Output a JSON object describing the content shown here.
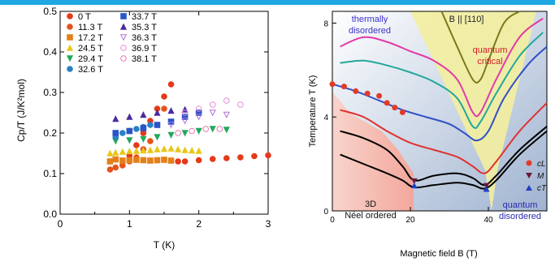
{
  "colors": {
    "top_bar": "#1ea7e3",
    "left_series": [
      "#e53919",
      "#e5531c",
      "#e4801a",
      "#e8c716",
      "#22a85a",
      "#2a80c6",
      "#2a55c8",
      "#4a2aa0",
      "#b070d8",
      "#e88ad6",
      "#e873b8"
    ],
    "phase_neel": "#f6b9b0",
    "phase_cone": "#f4f0a0",
    "phase_blue": "#b3c3da",
    "thermal_text": "#3b32cc",
    "quantum_critical_text": "#d21d24",
    "quantum_disordered_text": "#2a2ab0",
    "marker_cl": "#e23a28",
    "marker_m": "#6a1a38",
    "marker_ct": "#1e40c8"
  },
  "chart_data": [
    {
      "type": "scatter",
      "title": "",
      "xlabel": "T (K)",
      "ylabel": "Cp/T (J/K²mol)",
      "xlim": [
        0,
        3
      ],
      "ylim": [
        0,
        0.5
      ],
      "xticks": [
        "0",
        "1",
        "2",
        "3"
      ],
      "yticks": [
        "0.0",
        "0.1",
        "0.2",
        "0.3",
        "0.4",
        "0.5"
      ],
      "legend": {
        "position": "top-left",
        "columns": [
          [
            "0 T",
            "11.3 T",
            "17.2 T",
            "24.5 T",
            "29.4 T",
            "32.6 T"
          ],
          [
            "33.7 T",
            "35.3 T",
            "36.3 T",
            "36.9 T",
            "38.1 T"
          ]
        ],
        "markers": [
          "circle",
          "circle",
          "square",
          "triangle-up",
          "triangle-down",
          "circle",
          "square",
          "triangle-up",
          "triangle-down-open",
          "circle-open",
          "circle-open"
        ]
      },
      "series": [
        {
          "name": "0 T",
          "x": [
            1.0,
            1.1,
            1.2,
            1.3,
            1.4,
            1.5,
            1.6,
            1.7,
            1.8,
            2.0,
            2.2,
            2.4,
            2.6,
            2.8,
            3.0
          ],
          "y": [
            0.145,
            0.17,
            0.2,
            0.23,
            0.26,
            0.29,
            0.32,
            0.13,
            0.13,
            0.133,
            0.136,
            0.138,
            0.14,
            0.143,
            0.145
          ]
        },
        {
          "name": "11.3 T",
          "x": [
            0.72,
            0.8,
            0.9,
            1.0,
            1.1,
            1.2,
            1.3,
            1.4,
            1.5
          ],
          "y": [
            0.11,
            0.115,
            0.12,
            0.13,
            0.14,
            0.16,
            0.18,
            0.22,
            0.26
          ]
        },
        {
          "name": "17.2 T",
          "x": [
            0.72,
            0.8,
            0.9,
            1.0,
            1.1,
            1.2,
            1.3,
            1.4,
            1.5,
            1.6
          ],
          "y": [
            0.13,
            0.135,
            0.132,
            0.133,
            0.134,
            0.133,
            0.132,
            0.133,
            0.134,
            0.132
          ]
        },
        {
          "name": "24.5 T",
          "x": [
            0.72,
            0.8,
            0.9,
            1.0,
            1.1,
            1.2,
            1.3,
            1.4,
            1.5,
            1.6,
            1.7,
            1.8,
            1.9,
            2.0
          ],
          "y": [
            0.15,
            0.152,
            0.154,
            0.155,
            0.156,
            0.157,
            0.158,
            0.16,
            0.161,
            0.162,
            0.16,
            0.158,
            0.157,
            0.156
          ]
        },
        {
          "name": "29.4 T",
          "x": [
            0.8,
            1.0,
            1.2,
            1.4,
            1.6,
            1.8,
            2.0,
            2.2,
            2.4
          ],
          "y": [
            0.18,
            0.182,
            0.185,
            0.19,
            0.195,
            0.2,
            0.205,
            0.21,
            0.208
          ]
        },
        {
          "name": "32.6 T",
          "x": [
            0.8,
            0.9,
            1.0,
            1.1,
            1.2,
            1.3
          ],
          "y": [
            0.19,
            0.2,
            0.205,
            0.21,
            0.215,
            0.22
          ]
        },
        {
          "name": "33.7 T",
          "x": [
            0.8,
            1.0,
            1.2,
            1.4,
            1.6,
            1.8,
            2.0
          ],
          "y": [
            0.2,
            0.205,
            0.212,
            0.22,
            0.228,
            0.24,
            0.25
          ]
        },
        {
          "name": "35.3 T",
          "x": [
            0.8,
            1.0,
            1.2,
            1.4,
            1.6,
            1.8
          ],
          "y": [
            0.235,
            0.24,
            0.245,
            0.25,
            0.255,
            0.258
          ]
        },
        {
          "name": "36.3 T",
          "x": [
            1.6,
            1.8,
            2.0,
            2.2,
            2.4
          ],
          "y": [
            0.22,
            0.23,
            0.24,
            0.25,
            0.245
          ]
        },
        {
          "name": "36.9 T",
          "x": [
            1.8,
            2.0,
            2.2,
            2.4,
            2.6
          ],
          "y": [
            0.25,
            0.26,
            0.27,
            0.28,
            0.27
          ]
        },
        {
          "name": "38.1 T",
          "x": [
            1.7,
            1.9,
            2.1,
            2.3
          ],
          "y": [
            0.2,
            0.205,
            0.21,
            0.21
          ]
        }
      ]
    },
    {
      "type": "line",
      "title": "",
      "xlabel": "Magnetic field B (T)",
      "ylabel": "Temperature T (K)",
      "xlim": [
        0,
        55
      ],
      "ylim": [
        0,
        8.5
      ],
      "xticks": [
        "0",
        "20",
        "40"
      ],
      "yticks": [
        "0",
        "4",
        "8"
      ],
      "annotations": [
        "thermally disordered",
        "B || [110]",
        "quantum critical",
        "3D Néel ordered",
        "quantum disordered"
      ],
      "legend": {
        "position": "right",
        "entries": [
          "cL",
          "M",
          "cT"
        ]
      },
      "series": [
        {
          "color": "#7a7a1e",
          "x": [
            28,
            32,
            36,
            38,
            40,
            44,
            48
          ],
          "y": [
            8.5,
            7.0,
            5.6,
            5.6,
            6.4,
            8.0,
            8.5
          ]
        },
        {
          "color": "#e13aa7",
          "x": [
            2,
            8,
            14,
            20,
            26,
            32,
            36,
            38,
            42,
            48,
            54
          ],
          "y": [
            7.0,
            7.4,
            7.2,
            6.8,
            6.4,
            5.6,
            4.2,
            4.2,
            5.6,
            7.4,
            8.2
          ]
        },
        {
          "color": "#22a89a",
          "x": [
            2,
            8,
            14,
            20,
            26,
            32,
            36,
            38,
            42,
            48,
            54
          ],
          "y": [
            6.3,
            6.4,
            6.2,
            5.9,
            5.5,
            4.8,
            3.6,
            3.8,
            5.0,
            6.6,
            7.6
          ]
        },
        {
          "color": "#3050c8",
          "x": [
            0,
            6,
            12,
            18,
            24,
            30,
            34,
            37,
            40,
            44,
            50,
            55
          ],
          "y": [
            5.4,
            5.1,
            4.7,
            4.3,
            4.0,
            3.7,
            3.3,
            3.0,
            3.4,
            4.8,
            6.2,
            7.0
          ]
        },
        {
          "color": "#e03030",
          "x": [
            2,
            8,
            14,
            20,
            26,
            32,
            36,
            39,
            42,
            48,
            55
          ],
          "y": [
            4.3,
            4.0,
            3.4,
            2.9,
            2.6,
            2.3,
            1.9,
            1.6,
            2.1,
            3.4,
            4.6
          ]
        },
        {
          "color": "#000000",
          "x": [
            2,
            8,
            14,
            18,
            21,
            26,
            32,
            36,
            39,
            42,
            48,
            55
          ],
          "y": [
            3.4,
            3.1,
            2.6,
            1.9,
            1.3,
            1.5,
            1.6,
            1.4,
            1.1,
            1.5,
            2.6,
            3.6
          ]
        },
        {
          "color": "#000000",
          "x": [
            2,
            8,
            14,
            18,
            21,
            26,
            32,
            36,
            39,
            42,
            48,
            55
          ],
          "y": [
            2.4,
            2.0,
            1.6,
            1.3,
            1.0,
            1.1,
            1.2,
            1.1,
            0.95,
            1.3,
            2.4,
            3.4
          ]
        }
      ],
      "markers": {
        "cL": {
          "x": [
            0,
            3,
            6,
            9,
            12,
            14,
            16,
            18
          ],
          "y": [
            5.4,
            5.3,
            5.1,
            5.0,
            4.9,
            4.6,
            4.4,
            4.2
          ]
        },
        "M": {
          "x": [
            21,
            39.5
          ],
          "y": [
            1.25,
            1.05
          ]
        },
        "cT": {
          "x": [
            21,
            39.5
          ],
          "y": [
            1.1,
            0.95
          ]
        }
      }
    }
  ],
  "left_legend_labels": {
    "col1": [
      "0 T",
      "11.3 T",
      "17.2 T",
      "24.5 T",
      "29.4 T",
      "32.6 T"
    ],
    "col2": [
      "33.7 T",
      "35.3 T",
      "36.3 T",
      "36.9 T",
      "38.1 T"
    ]
  },
  "right_labels": {
    "thermal1": "thermally",
    "thermal2": "disordered",
    "field_dir": "B || [110]",
    "qc1": "quantum",
    "qc2": "critical",
    "neel1": "3D",
    "neel2": "Néel ordered",
    "qd1": "quantum",
    "qd2": "disordered",
    "leg_cl": "cL",
    "leg_m": "M",
    "leg_ct": "cT"
  }
}
